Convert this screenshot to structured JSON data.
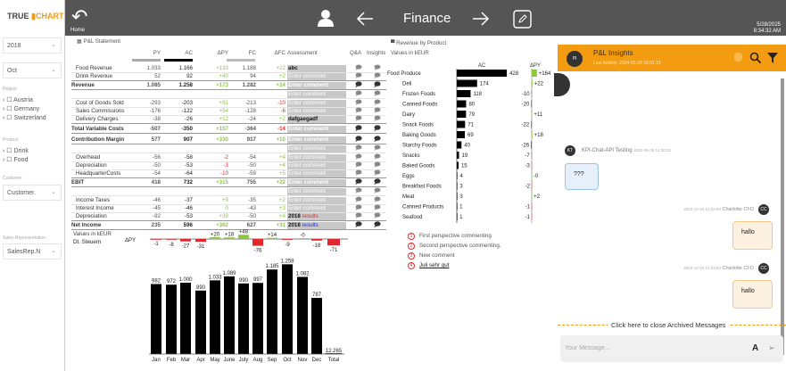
{
  "sidebar": {
    "logo_a": "TRUE",
    "logo_b": "CHART",
    "year": "2018",
    "month": "Oct",
    "region_label": "Region",
    "regions": [
      "Austria",
      "Germany",
      "Switzerland"
    ],
    "product_label": "Product",
    "products": [
      "Drink",
      "Food"
    ],
    "customer_label": "Customer",
    "customer": "Customer.",
    "salesrep_label": "Sales Representation",
    "salesrep": "SalesRep.N"
  },
  "header": {
    "home": "Home",
    "title": "Finance",
    "date": "5/28/2025",
    "time": "8:34:32 AM",
    "icons": [
      "home-back-icon",
      "user-icon",
      "arrow-left-icon",
      "arrow-right-icon",
      "edit-icon"
    ]
  },
  "pl": {
    "title": "P&L Statement",
    "columns": [
      "PY",
      "AC",
      "ΔPY",
      "FC",
      "ΔFC",
      "Assessment",
      "Q&A",
      "Insights"
    ],
    "rows": [
      {
        "label": "Food Revenue",
        "py": "1.033",
        "ac": "1.166",
        "dpy": "+133",
        "fc": "1.188",
        "dfc": "+22",
        "assess": "abc",
        "bold": false
      },
      {
        "label": "Drink Revenue",
        "py": "52",
        "ac": "92",
        "dpy": "+40",
        "fc": "94",
        "dfc": "+2",
        "assess": "Enter comment",
        "bold": false
      },
      {
        "label": "Revenue",
        "py": "1.085",
        "ac": "1.258",
        "dpy": "+173",
        "fc": "1.282",
        "dfc": "+24",
        "assess": "Enter comment",
        "bold": true
      },
      {
        "label": "",
        "py": "",
        "ac": "",
        "dpy": "",
        "fc": "",
        "dfc": "",
        "assess": "Enter comment",
        "bold": false
      },
      {
        "label": "Cost of Goods Sold",
        "py": "-293",
        "ac": "-203",
        "dpy": "+91",
        "fc": "-213",
        "dfc": "-10",
        "assess": "Enter comment",
        "bold": false
      },
      {
        "label": "Sales Commissions",
        "py": "-176",
        "ac": "-122",
        "dpy": "+54",
        "fc": "-128",
        "dfc": "-6",
        "assess": "Enter comment",
        "bold": false
      },
      {
        "label": "Delivery Charges",
        "py": "-38",
        "ac": "-26",
        "dpy": "+12",
        "fc": "-24",
        "dfc": "+2",
        "assess": "dafgaegadf",
        "bold": false
      },
      {
        "label": "Total Variable Costs",
        "py": "-507",
        "ac": "-350",
        "dpy": "+157",
        "fc": "-364",
        "dfc": "-14",
        "assess": "Enter comment",
        "bold": true
      },
      {
        "label": "Contribution Margin",
        "py": "577",
        "ac": "907",
        "dpy": "+330",
        "fc": "917",
        "dfc": "+10",
        "assess": "Enter comment",
        "bold": true
      },
      {
        "label": "",
        "py": "",
        "ac": "",
        "dpy": "",
        "fc": "",
        "dfc": "",
        "assess": "Enter comment",
        "bold": false
      },
      {
        "label": "Overhead",
        "py": "-56",
        "ac": "-58",
        "dpy": "-2",
        "fc": "-54",
        "dfc": "+4",
        "assess": "Enter comment",
        "bold": false
      },
      {
        "label": "Depreciation",
        "py": "-50",
        "ac": "-53",
        "dpy": "-3",
        "fc": "-50",
        "dfc": "+4",
        "assess": "Enter comment",
        "bold": false
      },
      {
        "label": "HeadquarterCosts",
        "py": "-54",
        "ac": "-64",
        "dpy": "-10",
        "fc": "-59",
        "dfc": "+5",
        "assess": "Enter comment",
        "bold": false
      },
      {
        "label": "EBIT",
        "py": "418",
        "ac": "732",
        "dpy": "+315",
        "fc": "755",
        "dfc": "+22",
        "assess": "Enter comment",
        "bold": true
      },
      {
        "label": "",
        "py": "",
        "ac": "",
        "dpy": "",
        "fc": "",
        "dfc": "",
        "assess": "Enter comment",
        "bold": false
      },
      {
        "label": "Income Taxes",
        "py": "-46",
        "ac": "-37",
        "dpy": "+9",
        "fc": "-35",
        "dfc": "+2",
        "assess": "Enter comment",
        "bold": false
      },
      {
        "label": "Interest Income",
        "py": "-45",
        "ac": "-46",
        "dpy": "0",
        "fc": "-43",
        "dfc": "+3",
        "assess": "Enter comment",
        "bold": false
      },
      {
        "label": "Depreciation",
        "py": "-92",
        "ac": "-53",
        "dpy": "+39",
        "fc": "-50",
        "dfc": "+4",
        "assess": "2018",
        "assess2": "results",
        "assess2_color": "#e0282e",
        "bold": false
      },
      {
        "label": "Net Income",
        "py": "235",
        "ac": "596",
        "dpy": "+362",
        "fc": "627",
        "dfc": "+31",
        "assess": "2018",
        "assess2": "results",
        "assess2_color": "#1a1aff",
        "bold": true
      }
    ],
    "overlap_label": "Dt. Steuern",
    "values_label": "Values in kEUR"
  },
  "chart_data": [
    {
      "type": "bar",
      "title": "",
      "categories": [
        "Jan",
        "Feb",
        "Mar",
        "Apr",
        "May",
        "June",
        "July",
        "Aug",
        "Sep",
        "Oct",
        "Nov",
        "Dec"
      ],
      "values": [
        982,
        972,
        1000,
        890,
        1033,
        1089,
        990,
        997,
        1185,
        1258,
        1082,
        787
      ],
      "labels": [
        "982",
        "972",
        "1.000",
        "890",
        "1.033",
        "1.089",
        "990",
        "997",
        "1.185",
        "1.258",
        "1.082",
        "787"
      ],
      "delta_label": "ΔPY",
      "delta": [
        -1,
        -8,
        -27,
        -31,
        20,
        18,
        48,
        -76,
        14,
        -9,
        0,
        -18,
        -71
      ],
      "delta_labels": [
        "-1",
        "-8",
        "-27",
        "-31",
        "+20",
        "+18",
        "+48",
        "-76",
        "+14",
        "-9",
        "-0",
        "-18",
        "-71"
      ],
      "total_label": "Total",
      "total": "12.265"
    },
    {
      "type": "bar",
      "title": "Revenue by Product",
      "subtitle": "Values in kEUR",
      "ac_label": "AC",
      "dpy_label": "ΔPY",
      "categories": [
        "Food Produce",
        "Deli",
        "Frozen Foods",
        "Canned Foods",
        "Dairy",
        "Snack Foods",
        "Baking Goods",
        "Starchy Foods",
        "Snacks",
        "Baked Goods",
        "Eggs",
        "Breakfast Foods",
        "Meat",
        "Canned Products",
        "Seafood"
      ],
      "values": [
        428,
        174,
        118,
        80,
        79,
        71,
        69,
        40,
        19,
        15,
        4,
        3,
        3,
        1,
        1
      ],
      "delta": [
        164,
        22,
        -10,
        -20,
        11,
        -22,
        18,
        -26,
        -7,
        -3,
        0,
        -2,
        2,
        -1,
        -1
      ],
      "delta_labels": [
        "+164",
        "+22",
        "-10",
        "-20",
        "+11",
        "-22",
        "+18",
        "-26",
        "-7",
        "-3",
        "-0",
        "-2",
        "+2",
        "-1",
        "-1"
      ]
    }
  ],
  "comments": [
    {
      "n": "1",
      "text": "First perspective commenting"
    },
    {
      "n": "2",
      "text": "Second perspective commenting."
    },
    {
      "n": "3",
      "text": "New comment"
    },
    {
      "n": "4",
      "text": "Juli sehr gut"
    }
  ],
  "chat": {
    "avatar": "PI",
    "title": "P&L Insights",
    "last_activity": "Last Activity: 2024-05-29 16:01:15",
    "messages": [
      {
        "avatar": "KT",
        "author": "KPI-Chat-API Testing",
        "time": "2022-09-29 14:30:22",
        "text": "???"
      },
      {
        "avatar": "CC",
        "author": "Charlotte CFO",
        "time": "2023-12-20 12:34:50",
        "text": "hallo"
      },
      {
        "avatar": "CC",
        "author": "Charlotte CFO",
        "time": "2023-12-20 12:34:52",
        "text": "hallo"
      }
    ],
    "archive": "Click here to close Archived Messages",
    "placeholder": "Your Message...",
    "accent": "#f39c12"
  }
}
